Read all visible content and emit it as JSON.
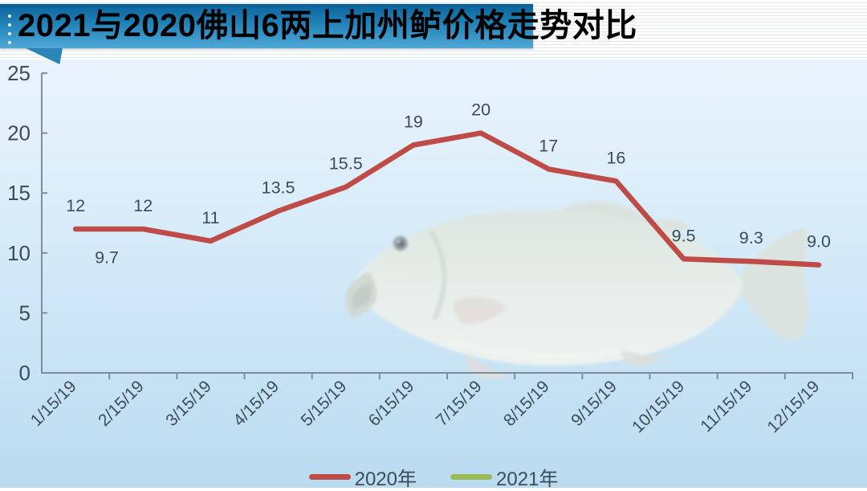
{
  "title": {
    "text": "2021与2020佛山6两上加州鲈价格走势对比"
  },
  "decorations": {
    "fish_image": "largemouth-bass-photo"
  },
  "colors": {
    "banner_blue": "#1f80b6",
    "series_2020_red": "#bf4b47",
    "series_2021_green": "#9bbb59",
    "axis_gray": "#7f8e9a",
    "label_text": "#3e4c58"
  },
  "chart_data": {
    "type": "line",
    "title": "2021与2020佛山6两上加州鲈价格走势对比",
    "xlabel": "",
    "ylabel": "",
    "categories": [
      "1/15/19",
      "2/15/19",
      "3/15/19",
      "4/15/19",
      "5/15/19",
      "6/15/19",
      "7/15/19",
      "8/15/19",
      "9/15/19",
      "10/15/19",
      "11/15/19",
      "12/15/19"
    ],
    "series": [
      {
        "name": "2020年",
        "color": "#bf4b47",
        "values": [
          12,
          12,
          11,
          13.5,
          15.5,
          19,
          20,
          17,
          16,
          9.5,
          9.3,
          9.0
        ],
        "labels": [
          "12",
          "12",
          "11",
          "13.5",
          "15.5",
          "19",
          "20",
          "17",
          "16",
          "9.5",
          "9.3",
          "9.0"
        ],
        "label_position": "above"
      },
      {
        "name": "2021年",
        "color": "#9bbb59",
        "values": [
          9.7,
          null,
          null,
          null,
          null,
          null,
          null,
          null,
          null,
          null,
          null,
          null
        ],
        "labels": [
          "9.7",
          "",
          "",
          "",
          "",
          "",
          "",
          "",
          "",
          "",
          "",
          ""
        ],
        "label_position": "right"
      }
    ],
    "ylim": [
      0,
      25
    ],
    "yticks": [
      0,
      5,
      10,
      15,
      20,
      25
    ],
    "grid": false,
    "legend_position": "bottom"
  }
}
